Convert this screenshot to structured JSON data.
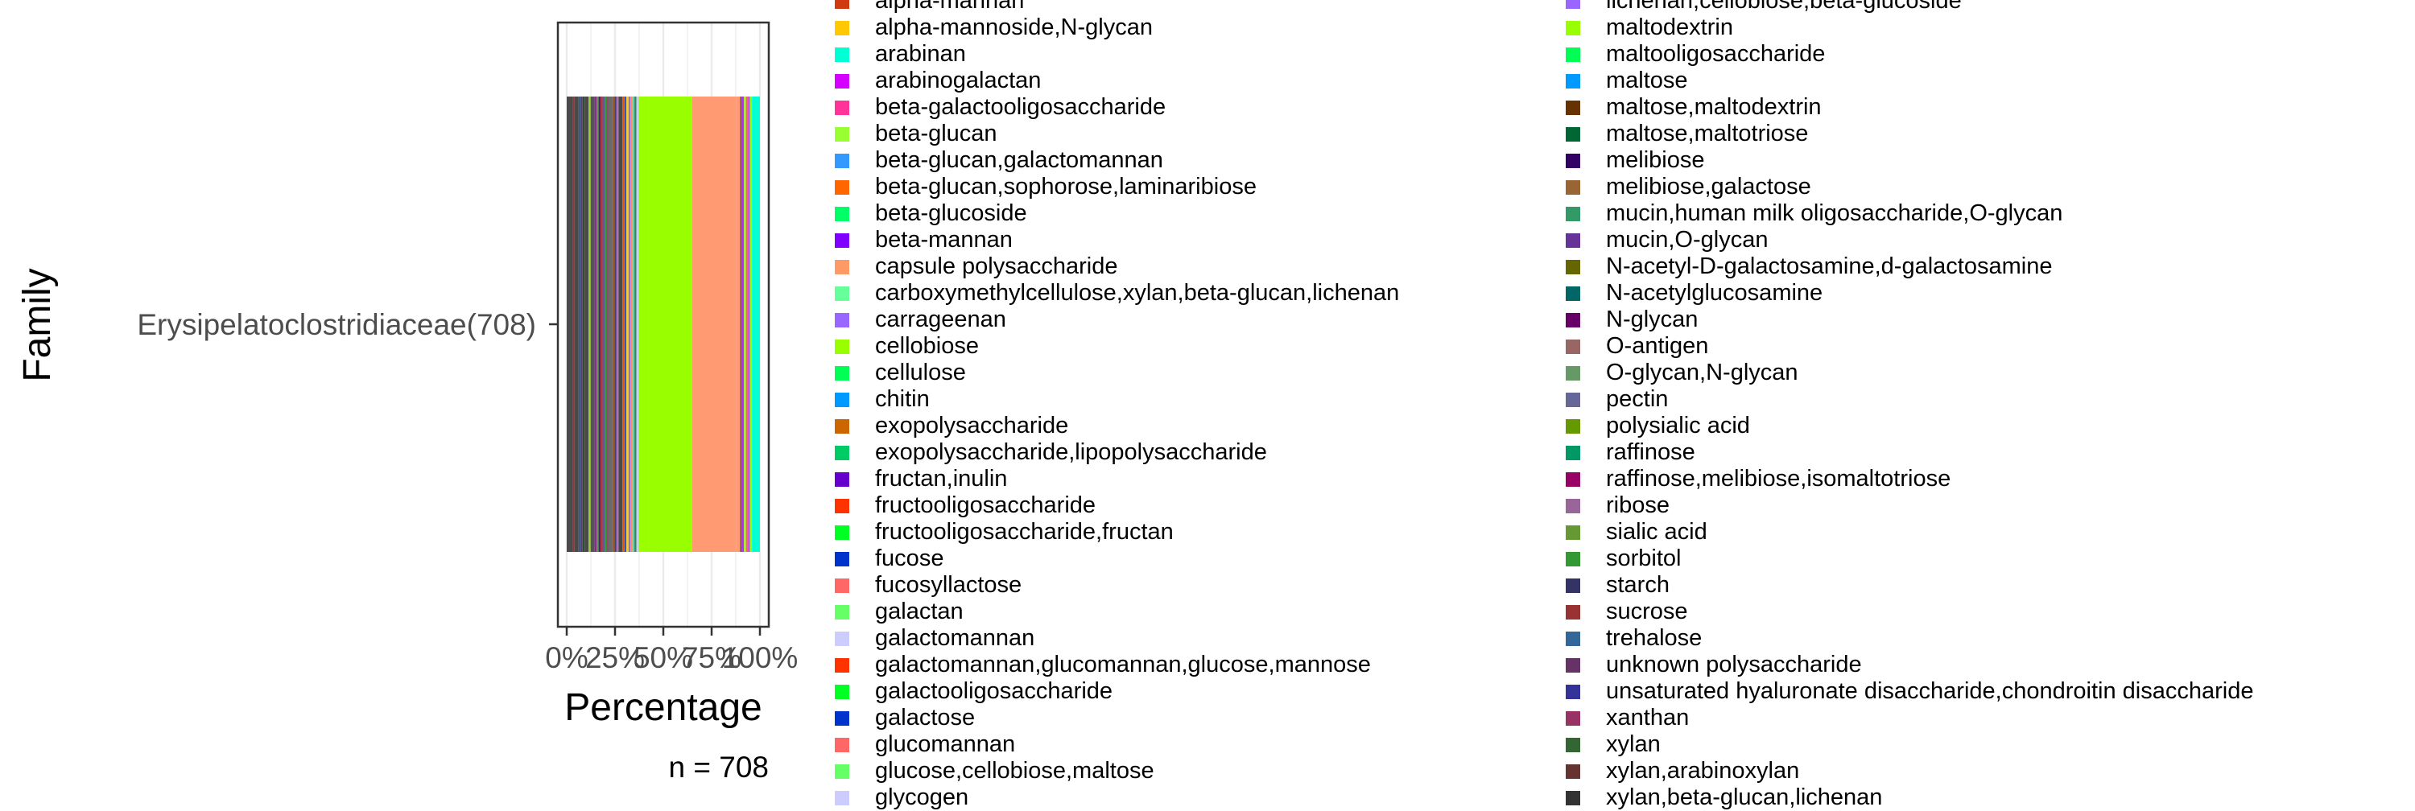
{
  "chart_data": {
    "type": "bar",
    "orientation": "horizontal",
    "stacked": true,
    "normalized": true,
    "categories": [
      "Erysipelatoclostridiaceae(708)"
    ],
    "xlabel": "Percentage",
    "ylabel": "Family",
    "xlim": [
      0,
      1
    ],
    "x_ticks": [
      "0%",
      "25%",
      "50%",
      "75%",
      "100%"
    ],
    "caption": "n = 708",
    "grid": true,
    "legend_position": "right",
    "segments": [
      {
        "color": "#4a4a4a",
        "value": 0.03
      },
      {
        "color": "#8b3a3a",
        "value": 0.01
      },
      {
        "color": "#4a4a4a",
        "value": 0.02
      },
      {
        "color": "#3a5a8a",
        "value": 0.01
      },
      {
        "color": "#5a3a6a",
        "value": 0.01
      },
      {
        "color": "#2f4f2f",
        "value": 0.01
      },
      {
        "color": "#4a4a4a",
        "value": 0.02
      },
      {
        "color": "#9acd32",
        "value": 0.01
      },
      {
        "color": "#555555",
        "value": 0.02
      },
      {
        "color": "#8a2a8a",
        "value": 0.01
      },
      {
        "color": "#6a8a5a",
        "value": 0.01
      },
      {
        "color": "#333366",
        "value": 0.01
      },
      {
        "color": "#c03030",
        "value": 0.01
      },
      {
        "color": "#5a5a9a",
        "value": 0.01
      },
      {
        "color": "#30a030",
        "value": 0.01
      },
      {
        "color": "#8a4a6a",
        "value": 0.01
      },
      {
        "color": "#6a6a6a",
        "value": 0.02
      },
      {
        "color": "#a05a20",
        "value": 0.01
      },
      {
        "color": "#404080",
        "value": 0.01
      },
      {
        "color": "#b070b0",
        "value": 0.01
      },
      {
        "color": "#4a4a4a",
        "value": 0.02
      },
      {
        "color": "#ee5500",
        "value": 0.01
      },
      {
        "color": "#3355cc",
        "value": 0.01
      },
      {
        "color": "#ffd700",
        "value": 0.01
      },
      {
        "color": "#9370db",
        "value": 0.01
      },
      {
        "color": "#ff8c69",
        "value": 0.01
      },
      {
        "color": "#66cdaa",
        "value": 0.01
      },
      {
        "color": "#2e8b57",
        "value": 0.01
      },
      {
        "color": "#ccccff",
        "value": 0.01
      },
      {
        "color": "#99ff00",
        "value": 0.05
      },
      {
        "color": "#99ff00",
        "value": 0.22
      },
      {
        "color": "#ff9a72",
        "value": 0.22
      },
      {
        "color": "#ff9a72",
        "value": 0.02
      },
      {
        "color": "#8a4a6a",
        "value": 0.01
      },
      {
        "color": "#b030ff",
        "value": 0.01
      },
      {
        "color": "#99ff00",
        "value": 0.01
      },
      {
        "color": "#ff5599",
        "value": 0.01
      },
      {
        "color": "#9b5de5",
        "value": 0.01
      },
      {
        "color": "#99ff00",
        "value": 0.01
      },
      {
        "color": "#00ffd5",
        "value": 0.02
      },
      {
        "color": "#00ffd5",
        "value": 0.02
      }
    ],
    "legend": [
      {
        "label": "alpha-mannan",
        "color": "#d03a10"
      },
      {
        "label": "alpha-mannoside,N-glycan",
        "color": "#ffc800"
      },
      {
        "label": "arabinan",
        "color": "#00ffd5"
      },
      {
        "label": "arabinogalactan",
        "color": "#d500ff"
      },
      {
        "label": "beta-galactooligosaccharide",
        "color": "#ff3399"
      },
      {
        "label": "beta-glucan",
        "color": "#99ff33"
      },
      {
        "label": "beta-glucan,galactomannan",
        "color": "#3399ff"
      },
      {
        "label": "beta-glucan,sophorose,laminaribiose",
        "color": "#ff6600"
      },
      {
        "label": "beta-glucoside",
        "color": "#00ff66"
      },
      {
        "label": "beta-mannan",
        "color": "#7f00ff"
      },
      {
        "label": "capsule polysaccharide",
        "color": "#ff9966"
      },
      {
        "label": "carboxymethylcellulose,xylan,beta-glucan,lichenan",
        "color": "#66ff99"
      },
      {
        "label": "carrageenan",
        "color": "#9966ff"
      },
      {
        "label": "cellobiose",
        "color": "#99ff00"
      },
      {
        "label": "cellulose",
        "color": "#00ff55"
      },
      {
        "label": "chitin",
        "color": "#0099ff"
      },
      {
        "label": "exopolysaccharide",
        "color": "#cc6600"
      },
      {
        "label": "exopolysaccharide,lipopolysaccharide",
        "color": "#00cc66"
      },
      {
        "label": "fructan,inulin",
        "color": "#6600cc"
      },
      {
        "label": "fructooligosaccharide",
        "color": "#ff3300"
      },
      {
        "label": "fructooligosaccharide,fructan",
        "color": "#00ff22"
      },
      {
        "label": "fucose",
        "color": "#0033cc"
      },
      {
        "label": "fucosyllactose",
        "color": "#ff6666"
      },
      {
        "label": "galactan",
        "color": "#66ff66"
      },
      {
        "label": "galactomannan",
        "color": "#ccccff"
      },
      {
        "label": "galactomannan,glucomannan,glucose,mannose",
        "color": "#ff3300"
      },
      {
        "label": "galactooligosaccharide",
        "color": "#00ff22"
      },
      {
        "label": "galactose",
        "color": "#0033cc"
      },
      {
        "label": "glucomannan",
        "color": "#ff6666"
      },
      {
        "label": "glucose,cellobiose,maltose",
        "color": "#66ff66"
      },
      {
        "label": "glycogen",
        "color": "#ccccff"
      }
    ],
    "legend2": [
      {
        "label": "lichenan,cellobiose,beta-glucoside",
        "color": "#9966ff"
      },
      {
        "label": "maltodextrin",
        "color": "#99ff00"
      },
      {
        "label": "maltooligosaccharide",
        "color": "#00ff55"
      },
      {
        "label": "maltose",
        "color": "#0099ff"
      },
      {
        "label": "maltose,maltodextrin",
        "color": "#663300"
      },
      {
        "label": "maltose,maltotriose",
        "color": "#006633"
      },
      {
        "label": "melibiose",
        "color": "#330066"
      },
      {
        "label": "melibiose,galactose",
        "color": "#996633"
      },
      {
        "label": "mucin,human milk oligosaccharide,O-glycan",
        "color": "#339966"
      },
      {
        "label": "mucin,O-glycan",
        "color": "#663399"
      },
      {
        "label": "N-acetyl-D-galactosamine,d-galactosamine",
        "color": "#666600"
      },
      {
        "label": "N-acetylglucosamine",
        "color": "#006666"
      },
      {
        "label": "N-glycan",
        "color": "#660066"
      },
      {
        "label": "O-antigen",
        "color": "#996666"
      },
      {
        "label": "O-glycan,N-glycan",
        "color": "#669966"
      },
      {
        "label": "pectin",
        "color": "#666699"
      },
      {
        "label": "polysialic acid",
        "color": "#669900"
      },
      {
        "label": "raffinose",
        "color": "#009966"
      },
      {
        "label": "raffinose,melibiose,isomaltotriose",
        "color": "#990066"
      },
      {
        "label": "ribose",
        "color": "#996699"
      },
      {
        "label": "sialic acid",
        "color": "#669933"
      },
      {
        "label": "sorbitol",
        "color": "#339933"
      },
      {
        "label": "starch",
        "color": "#333366"
      },
      {
        "label": "sucrose",
        "color": "#993333"
      },
      {
        "label": "trehalose",
        "color": "#336699"
      },
      {
        "label": "unknown polysaccharide",
        "color": "#663366"
      },
      {
        "label": "unsaturated hyaluronate disaccharide,chondroitin disaccharide",
        "color": "#333399"
      },
      {
        "label": "xanthan",
        "color": "#993366"
      },
      {
        "label": "xylan",
        "color": "#336633"
      },
      {
        "label": "xylan,arabinoxylan",
        "color": "#663333"
      },
      {
        "label": "xylan,beta-glucan,lichenan",
        "color": "#333333"
      }
    ]
  }
}
